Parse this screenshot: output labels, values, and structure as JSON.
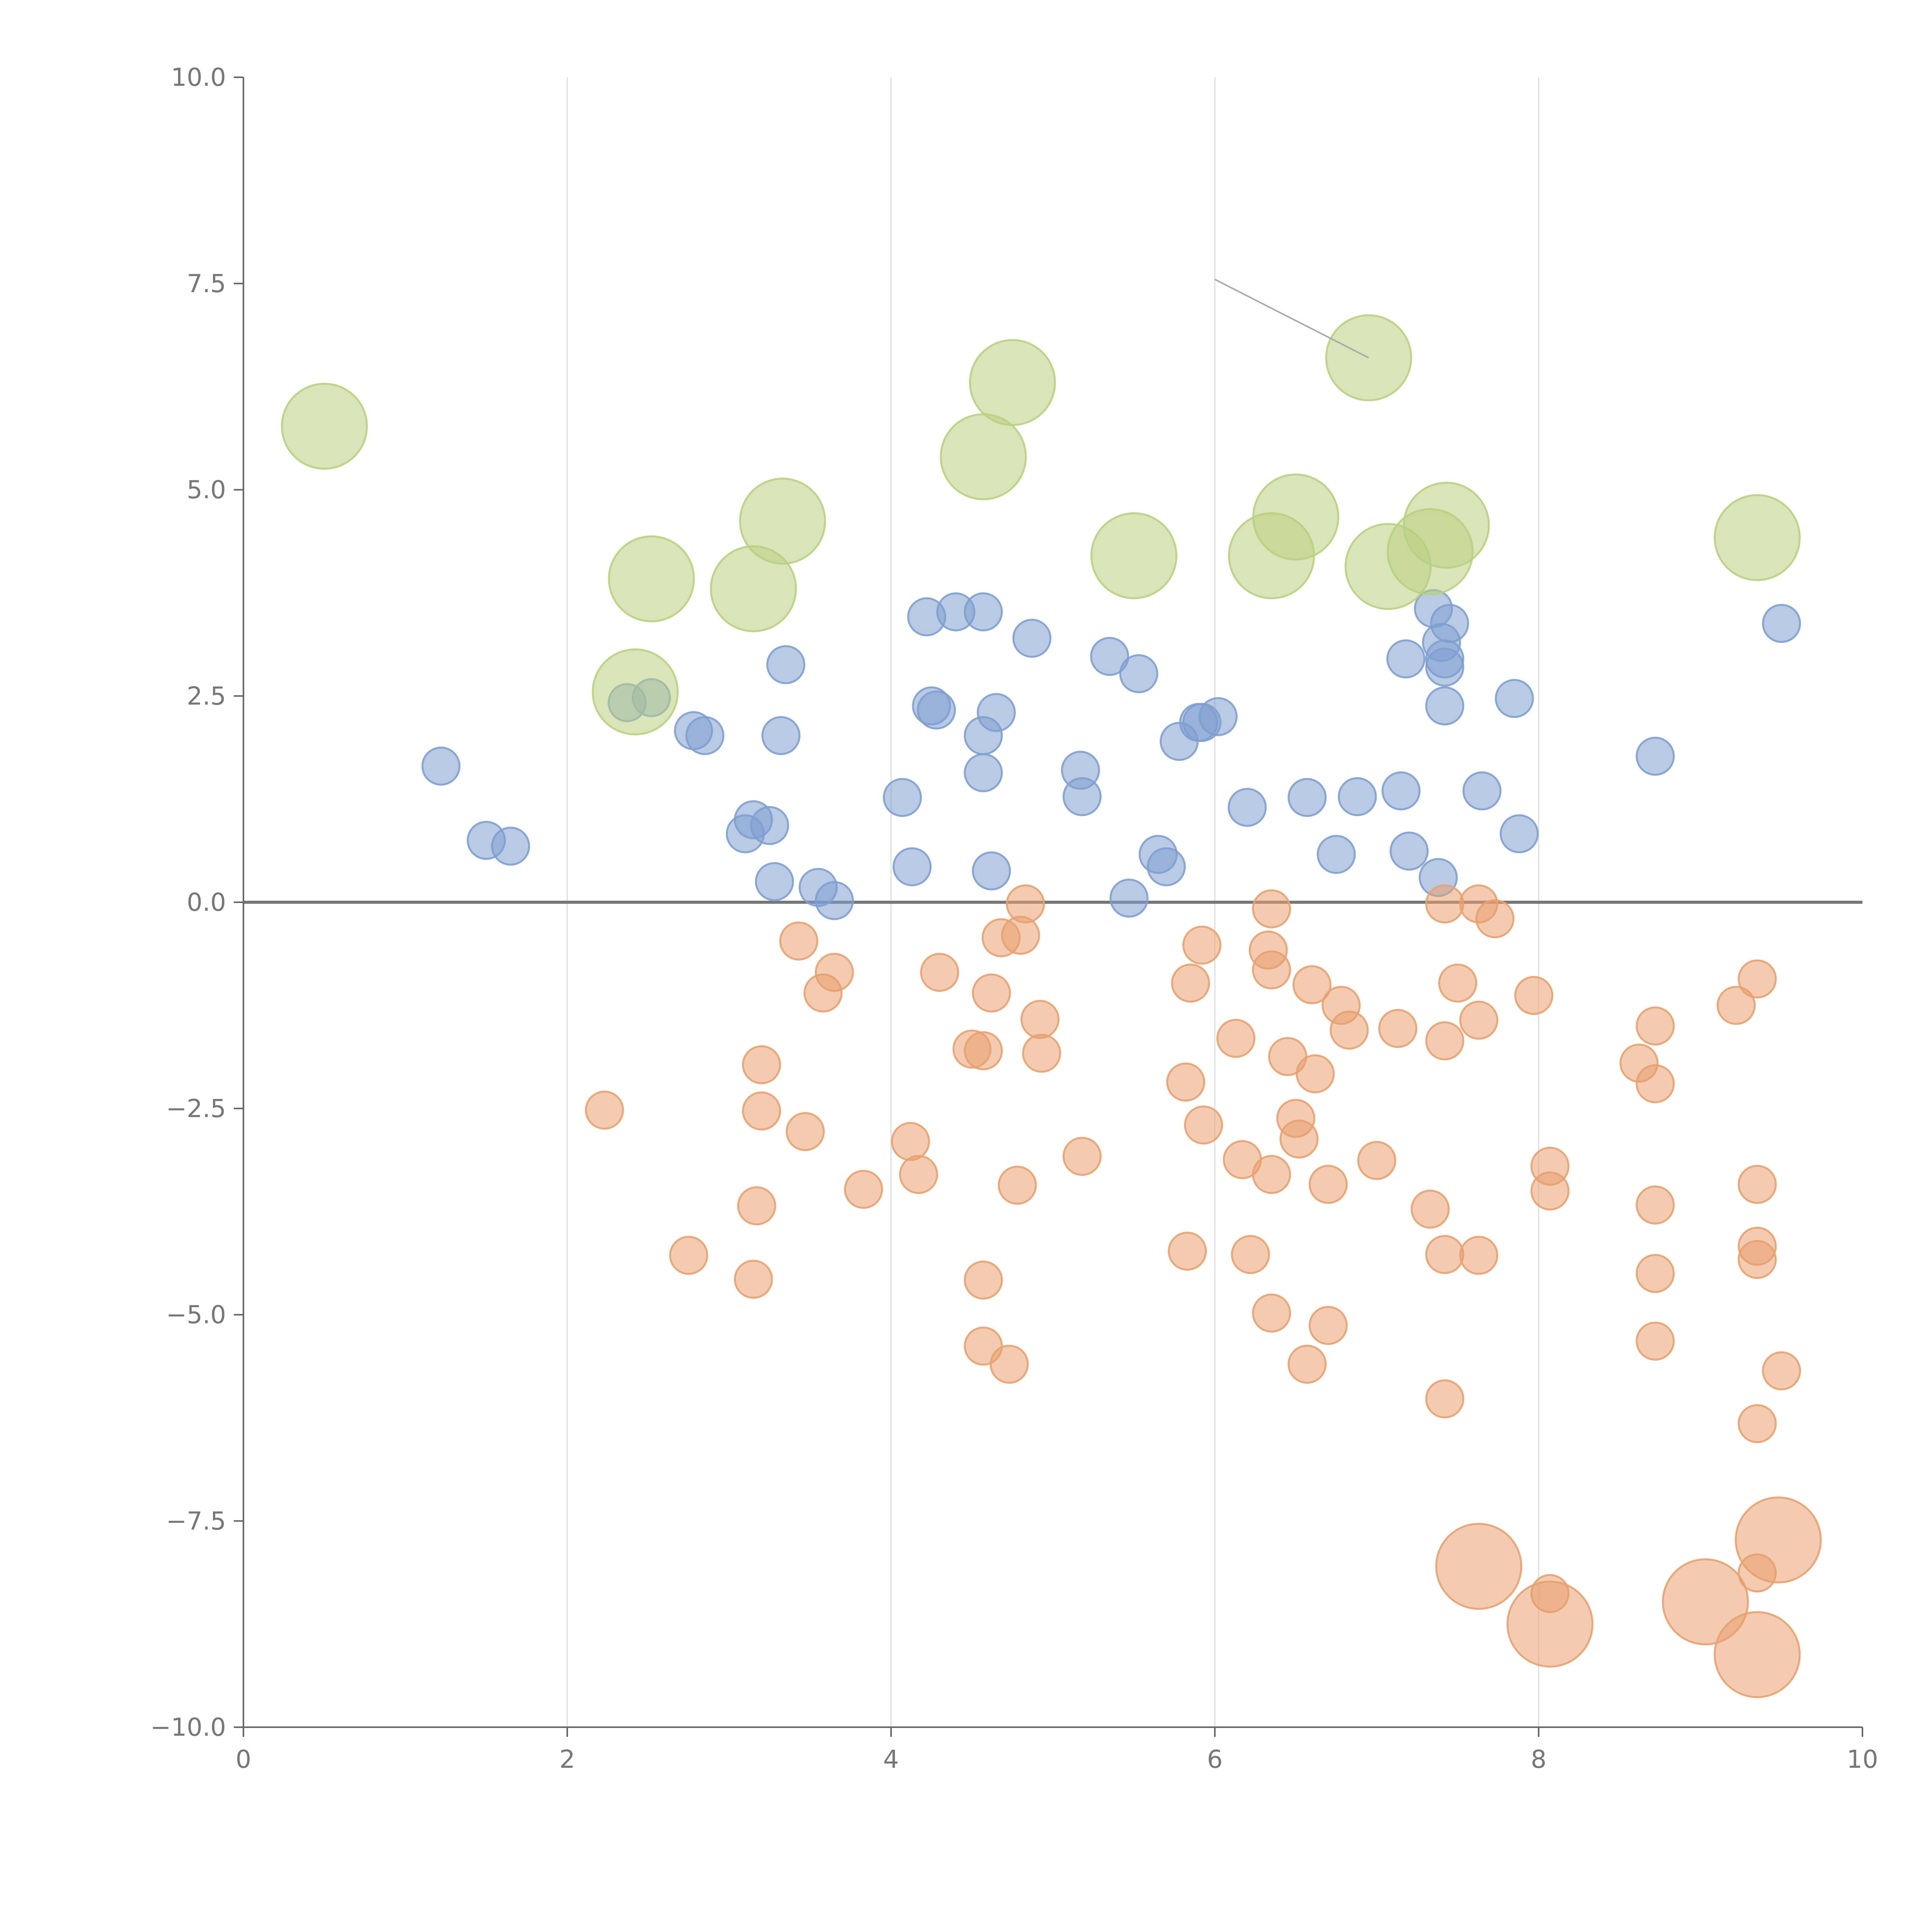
{
  "chart_data": {
    "type": "scatter",
    "title": "",
    "xlabel": "",
    "ylabel": "",
    "xlim": [
      0,
      10
    ],
    "ylim": [
      -10,
      10
    ],
    "grid": "vertical",
    "x_ticks": [
      "0",
      "2",
      "4",
      "6",
      "8",
      "10"
    ],
    "y_ticks": [
      "10.0",
      "7.5",
      "5.0",
      "2.5",
      "0.0",
      "−2.5",
      "−5.0",
      "−7.5",
      "−10.0"
    ],
    "reference_line_y": 0,
    "leader_line": {
      "from": [
        6.0,
        7.55
      ],
      "to": [
        6.95,
        6.6
      ]
    },
    "colors": {
      "blue": "#7f9fd0",
      "orange": "#e8a16f",
      "green": "#b9d07f"
    },
    "series": [
      {
        "name": "blue",
        "size": "small",
        "points": [
          [
            1.22,
            1.65
          ],
          [
            1.5,
            0.75
          ],
          [
            1.65,
            0.68
          ],
          [
            2.37,
            2.42
          ],
          [
            2.52,
            2.48
          ],
          [
            2.78,
            2.08
          ],
          [
            2.85,
            2.02
          ],
          [
            3.1,
            0.83
          ],
          [
            3.15,
            1.0
          ],
          [
            3.25,
            0.93
          ],
          [
            3.28,
            0.25
          ],
          [
            3.32,
            2.02
          ],
          [
            3.35,
            2.88
          ],
          [
            3.55,
            0.18
          ],
          [
            3.65,
            0.02
          ],
          [
            4.07,
            1.27
          ],
          [
            4.13,
            0.43
          ],
          [
            4.22,
            3.46
          ],
          [
            4.25,
            2.38
          ],
          [
            4.28,
            2.33
          ],
          [
            4.4,
            3.52
          ],
          [
            4.57,
            3.52
          ],
          [
            4.57,
            2.02
          ],
          [
            4.57,
            1.57
          ],
          [
            4.62,
            0.38
          ],
          [
            4.65,
            2.3
          ],
          [
            4.87,
            3.2
          ],
          [
            5.17,
            1.6
          ],
          [
            5.18,
            1.28
          ],
          [
            5.35,
            2.98
          ],
          [
            5.47,
            0.05
          ],
          [
            5.53,
            2.77
          ],
          [
            5.65,
            0.58
          ],
          [
            5.7,
            0.43
          ],
          [
            5.78,
            1.95
          ],
          [
            5.9,
            2.18
          ],
          [
            5.92,
            2.18
          ],
          [
            6.02,
            2.25
          ],
          [
            6.2,
            1.15
          ],
          [
            6.57,
            1.27
          ],
          [
            6.75,
            0.58
          ],
          [
            6.88,
            1.28
          ],
          [
            7.15,
            1.35
          ],
          [
            7.18,
            2.95
          ],
          [
            7.2,
            0.62
          ],
          [
            7.35,
            3.56
          ],
          [
            7.38,
            0.3
          ],
          [
            7.4,
            3.15
          ],
          [
            7.42,
            2.95
          ],
          [
            7.42,
            2.85
          ],
          [
            7.42,
            2.38
          ],
          [
            7.45,
            3.38
          ],
          [
            7.65,
            1.35
          ],
          [
            7.85,
            2.47
          ],
          [
            7.88,
            0.83
          ],
          [
            8.72,
            1.77
          ],
          [
            9.5,
            3.38
          ]
        ]
      },
      {
        "name": "orange",
        "size": "small",
        "points": [
          [
            2.23,
            -2.52
          ],
          [
            2.75,
            -4.28
          ],
          [
            3.15,
            -4.57
          ],
          [
            3.17,
            -3.68
          ],
          [
            3.2,
            -1.97
          ],
          [
            3.2,
            -2.53
          ],
          [
            3.43,
            -0.47
          ],
          [
            3.47,
            -2.78
          ],
          [
            3.58,
            -1.1
          ],
          [
            3.65,
            -0.85
          ],
          [
            3.83,
            -3.48
          ],
          [
            4.12,
            -2.9
          ],
          [
            4.17,
            -3.3
          ],
          [
            4.3,
            -0.85
          ],
          [
            4.5,
            -1.78
          ],
          [
            4.57,
            -1.8
          ],
          [
            4.57,
            -4.58
          ],
          [
            4.57,
            -5.38
          ],
          [
            4.62,
            -1.1
          ],
          [
            4.68,
            -0.43
          ],
          [
            4.73,
            -5.6
          ],
          [
            4.78,
            -3.43
          ],
          [
            4.8,
            -0.4
          ],
          [
            4.83,
            -0.02
          ],
          [
            4.92,
            -1.42
          ],
          [
            4.93,
            -1.83
          ],
          [
            5.18,
            -3.08
          ],
          [
            5.82,
            -2.18
          ],
          [
            5.83,
            -4.23
          ],
          [
            5.85,
            -0.98
          ],
          [
            5.92,
            -0.52
          ],
          [
            5.93,
            -2.7
          ],
          [
            6.13,
            -1.65
          ],
          [
            6.17,
            -3.12
          ],
          [
            6.22,
            -4.27
          ],
          [
            6.33,
            -0.58
          ],
          [
            6.35,
            -0.08
          ],
          [
            6.35,
            -0.82
          ],
          [
            6.35,
            -3.3
          ],
          [
            6.35,
            -4.98
          ],
          [
            6.45,
            -1.87
          ],
          [
            6.5,
            -2.62
          ],
          [
            6.52,
            -2.87
          ],
          [
            6.57,
            -5.6
          ],
          [
            6.6,
            -1.0
          ],
          [
            6.62,
            -2.08
          ],
          [
            6.7,
            -3.42
          ],
          [
            6.7,
            -5.13
          ],
          [
            6.78,
            -1.25
          ],
          [
            6.83,
            -1.55
          ],
          [
            7.0,
            -3.13
          ],
          [
            7.13,
            -1.53
          ],
          [
            7.33,
            -3.72
          ],
          [
            7.42,
            -1.68
          ],
          [
            7.42,
            -4.27
          ],
          [
            7.42,
            -6.02
          ],
          [
            7.42,
            -0.02
          ],
          [
            7.5,
            -0.98
          ],
          [
            7.63,
            -0.02
          ],
          [
            7.63,
            -1.43
          ],
          [
            7.63,
            -4.28
          ],
          [
            7.73,
            -0.2
          ],
          [
            7.97,
            -1.13
          ],
          [
            8.07,
            -3.2
          ],
          [
            8.07,
            -3.5
          ],
          [
            8.07,
            -8.38
          ],
          [
            8.62,
            -1.95
          ],
          [
            8.72,
            -1.5
          ],
          [
            8.72,
            -2.2
          ],
          [
            8.72,
            -3.67
          ],
          [
            8.72,
            -4.5
          ],
          [
            8.72,
            -5.32
          ],
          [
            9.22,
            -1.25
          ],
          [
            9.35,
            -0.93
          ],
          [
            9.35,
            -3.42
          ],
          [
            9.35,
            -4.17
          ],
          [
            9.35,
            -4.33
          ],
          [
            9.35,
            -6.32
          ],
          [
            9.35,
            -8.13
          ],
          [
            9.5,
            -5.68
          ]
        ]
      },
      {
        "name": "orange-large",
        "size": "large",
        "points": [
          [
            7.63,
            -8.05
          ],
          [
            8.07,
            -8.75
          ],
          [
            9.03,
            -8.48
          ],
          [
            9.35,
            -9.12
          ],
          [
            9.48,
            -7.73
          ]
        ]
      },
      {
        "name": "green",
        "size": "large",
        "points": [
          [
            0.5,
            5.77
          ],
          [
            2.42,
            2.55
          ],
          [
            2.52,
            3.92
          ],
          [
            3.15,
            3.8
          ],
          [
            3.33,
            4.62
          ],
          [
            4.57,
            5.4
          ],
          [
            4.75,
            6.3
          ],
          [
            5.5,
            4.2
          ],
          [
            6.35,
            4.2
          ],
          [
            6.5,
            4.67
          ],
          [
            6.95,
            6.6
          ],
          [
            7.07,
            4.07
          ],
          [
            7.33,
            4.25
          ],
          [
            7.43,
            4.57
          ],
          [
            9.35,
            4.42
          ]
        ]
      }
    ]
  }
}
